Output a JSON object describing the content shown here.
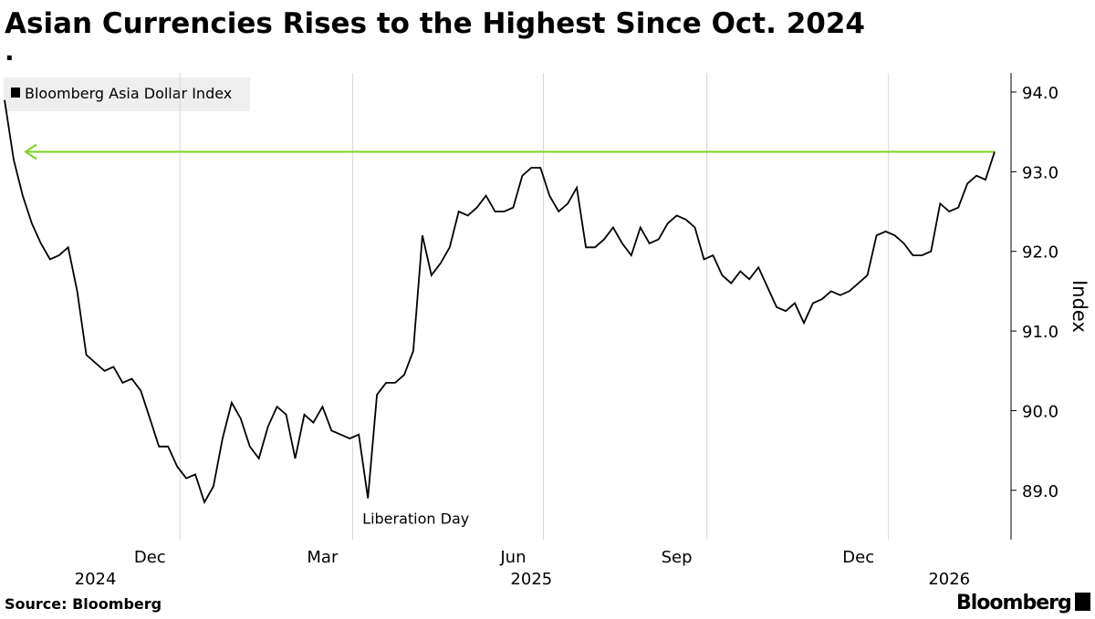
{
  "chart_data": {
    "type": "line",
    "title": "Asian Currencies Rises to the Highest Since Oct. 2024",
    "subtitle": ".",
    "y_label": "Index",
    "source": "Source: Bloomberg",
    "brand": "Bloomberg",
    "categories": [
      null,
      null,
      null,
      null,
      null,
      null,
      null,
      null,
      null,
      null,
      null,
      null,
      null,
      null,
      null,
      null,
      "Dec",
      null,
      null,
      null,
      null,
      null,
      null,
      null,
      null,
      null,
      null,
      null,
      null,
      null,
      null,
      null,
      null,
      null,
      null,
      "Mar",
      null,
      null,
      null,
      null,
      null,
      null,
      null,
      null,
      null,
      null,
      null,
      null,
      null,
      null,
      null,
      null,
      null,
      null,
      null,
      null,
      "Jun",
      null,
      null,
      null,
      null,
      null,
      null,
      null,
      null,
      null,
      null,
      null,
      null,
      null,
      null,
      null,
      null,
      null,
      "Sep",
      null,
      null,
      null,
      null,
      null,
      null,
      null,
      null,
      null,
      null,
      null,
      null,
      null,
      null,
      null,
      null,
      null,
      null,
      null,
      "Dec",
      null,
      null,
      null,
      null,
      null,
      null,
      null,
      null,
      null,
      null,
      null,
      null,
      null,
      null,
      null
    ],
    "x_years": [
      null,
      null,
      null,
      null,
      null,
      null,
      null,
      null,
      null,
      null,
      "2024",
      null,
      null,
      null,
      null,
      null,
      null,
      null,
      null,
      null,
      null,
      null,
      null,
      null,
      null,
      null,
      null,
      null,
      null,
      null,
      null,
      null,
      null,
      null,
      null,
      null,
      null,
      null,
      null,
      null,
      null,
      null,
      null,
      null,
      null,
      null,
      null,
      null,
      null,
      null,
      null,
      null,
      null,
      null,
      null,
      null,
      null,
      null,
      "2025",
      null,
      null,
      null,
      null,
      null,
      null,
      null,
      null,
      null,
      null,
      null,
      null,
      null,
      null,
      null,
      null,
      null,
      null,
      null,
      null,
      null,
      null,
      null,
      null,
      null,
      null,
      null,
      null,
      null,
      null,
      null,
      null,
      null,
      null,
      null,
      null,
      null,
      null,
      null,
      null,
      null,
      null,
      null,
      null,
      null,
      "2026",
      null,
      null,
      null,
      null,
      null
    ],
    "series": [
      {
        "name": "Bloomberg Asia Dollar Index",
        "color": "#000000",
        "values": [
          93.9,
          93.15,
          92.7,
          92.35,
          92.1,
          91.9,
          91.95,
          92.05,
          91.5,
          90.7,
          90.6,
          90.5,
          90.55,
          90.35,
          90.4,
          90.25,
          89.9,
          89.55,
          89.55,
          89.3,
          89.15,
          89.2,
          88.85,
          89.05,
          89.65,
          90.1,
          89.9,
          89.55,
          89.4,
          89.8,
          90.05,
          89.95,
          89.4,
          89.95,
          89.85,
          90.05,
          89.75,
          89.7,
          89.65,
          89.7,
          88.9,
          90.2,
          90.35,
          90.35,
          90.45,
          90.75,
          92.2,
          91.7,
          91.85,
          92.05,
          92.5,
          92.45,
          92.55,
          92.7,
          92.5,
          92.5,
          92.55,
          92.95,
          93.05,
          93.05,
          92.7,
          92.5,
          92.6,
          92.8,
          92.05,
          92.05,
          92.15,
          92.3,
          92.1,
          91.95,
          92.3,
          92.1,
          92.15,
          92.35,
          92.45,
          92.4,
          92.3,
          91.9,
          91.95,
          91.7,
          91.6,
          91.75,
          91.65,
          91.8,
          91.55,
          91.3,
          91.25,
          91.35,
          91.1,
          91.35,
          91.4,
          91.5,
          91.45,
          91.5,
          91.6,
          91.7,
          92.2,
          92.25,
          92.2,
          92.1,
          91.95,
          91.95,
          92.0,
          92.6,
          92.5,
          92.55,
          92.85,
          92.95,
          92.9,
          93.25
        ]
      }
    ],
    "annotations": [
      {
        "index": 40,
        "text": "Liberation Day"
      }
    ],
    "reference_line": {
      "value": 93.25,
      "color": "#7ed321"
    },
    "ylim": [
      88.38,
      94.24
    ],
    "yticks": [
      {
        "value": 89,
        "label": "89.0"
      },
      {
        "value": 90,
        "label": "90.0"
      },
      {
        "value": 91,
        "label": "91.0"
      },
      {
        "value": 92,
        "label": "92.0"
      },
      {
        "value": 93,
        "label": "93.0"
      },
      {
        "value": 94,
        "label": "94.0"
      }
    ],
    "grid": true
  }
}
